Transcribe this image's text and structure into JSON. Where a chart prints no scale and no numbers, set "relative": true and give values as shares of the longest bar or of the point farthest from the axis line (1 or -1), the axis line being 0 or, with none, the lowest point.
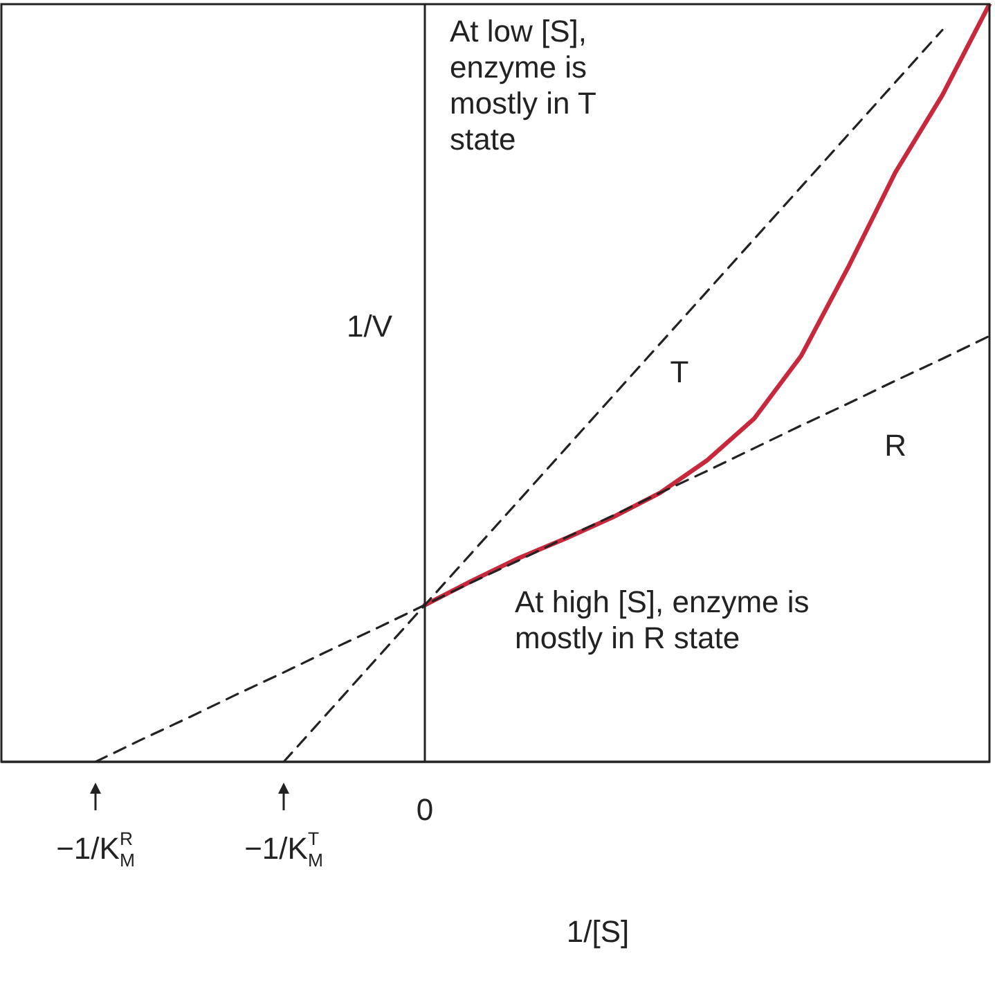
{
  "chart_data": {
    "type": "line",
    "relative": true,
    "xlabel": "1/[S]",
    "ylabel": "1/V",
    "categories": [
      null,
      null,
      null,
      null,
      null,
      null,
      null,
      null,
      null,
      null,
      null,
      null,
      null,
      null,
      null,
      null,
      null,
      null,
      null,
      null,
      null,
      null
    ],
    "series": [
      {
        "name": "T",
        "type": "line",
        "color": "#222222",
        "line_style": "dashed",
        "values": [
          null,
          null,
          null,
          null,
          null,
          null,
          0,
          0.069,
          0.138,
          0.207,
          0.276,
          0.345,
          0.414,
          0.483,
          0.552,
          0.621,
          0.69,
          0.759,
          0.828,
          0.897,
          0.966,
          null
        ]
      },
      {
        "name": "R",
        "type": "line",
        "color": "#222222",
        "line_style": "dashed",
        "values": [
          null,
          null,
          0,
          0.03,
          0.059,
          0.089,
          0.118,
          0.148,
          0.177,
          0.207,
          0.237,
          0.266,
          0.296,
          0.325,
          0.355,
          0.384,
          0.414,
          0.444,
          0.473,
          0.503,
          0.532,
          0.562
        ]
      },
      {
        "type": "line",
        "color": "#c8283c",
        "line_style": "solid",
        "values": [
          null,
          null,
          null,
          null,
          null,
          null,
          null,
          null,
          null,
          0.207,
          0.239,
          0.269,
          0.295,
          0.323,
          0.355,
          0.398,
          0.453,
          0.536,
          0.653,
          0.778,
          0.88,
          1.0
        ]
      }
    ],
    "annotations": [
      "At low [S], enzyme is mostly in T state",
      "At high [S], enzyme is mostly in R state",
      "−1/K$^{R}$$_{M}$",
      "−1/K$^{T}$$_{M}$",
      "0"
    ],
    "legend": false,
    "marker": "none"
  }
}
